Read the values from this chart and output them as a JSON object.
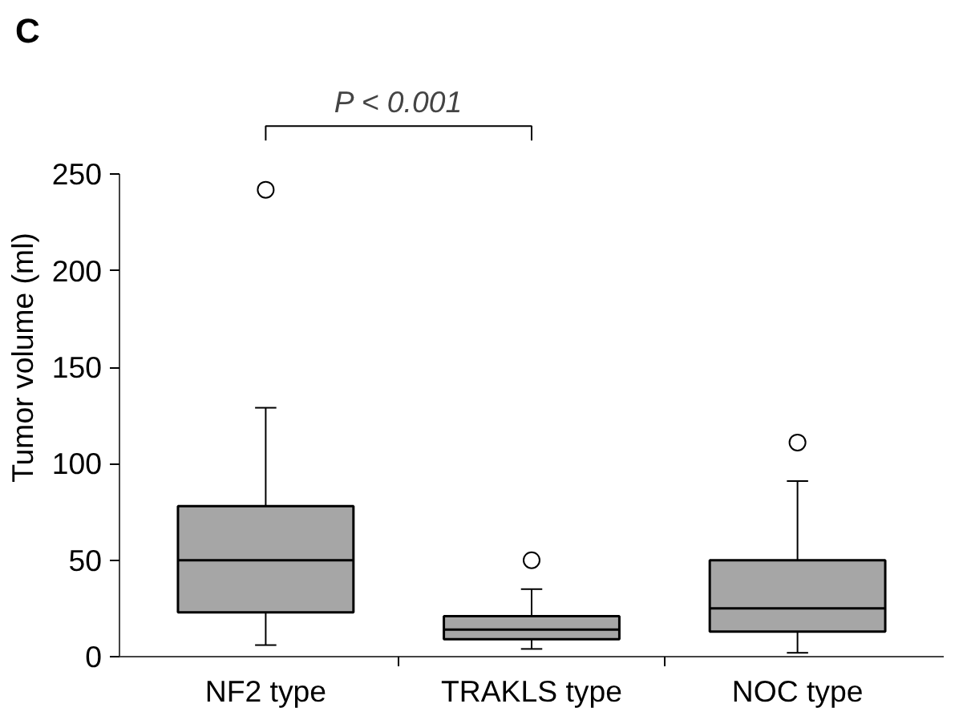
{
  "chart_data": {
    "type": "box",
    "title": "C",
    "ylabel": "Tumor volume (ml)",
    "categories": [
      "NF2 type",
      "TRAKLS type",
      "NOC type"
    ],
    "boxes": [
      {
        "low": 6,
        "q1": 23,
        "median": 50,
        "q3": 78,
        "high": 129,
        "outliers": [
          242
        ]
      },
      {
        "low": 4,
        "q1": 9,
        "median": 14,
        "q3": 21,
        "high": 35,
        "outliers": [
          50
        ]
      },
      {
        "low": 2,
        "q1": 13,
        "median": 25,
        "q3": 50,
        "high": 91,
        "outliers": [
          111
        ]
      }
    ],
    "color": "#a6a6a6",
    "ylim": [
      0,
      250
    ],
    "yticks": [
      0,
      50,
      100,
      150,
      200,
      250
    ],
    "grid": false,
    "annotations": [
      "P < 0.001"
    ]
  }
}
